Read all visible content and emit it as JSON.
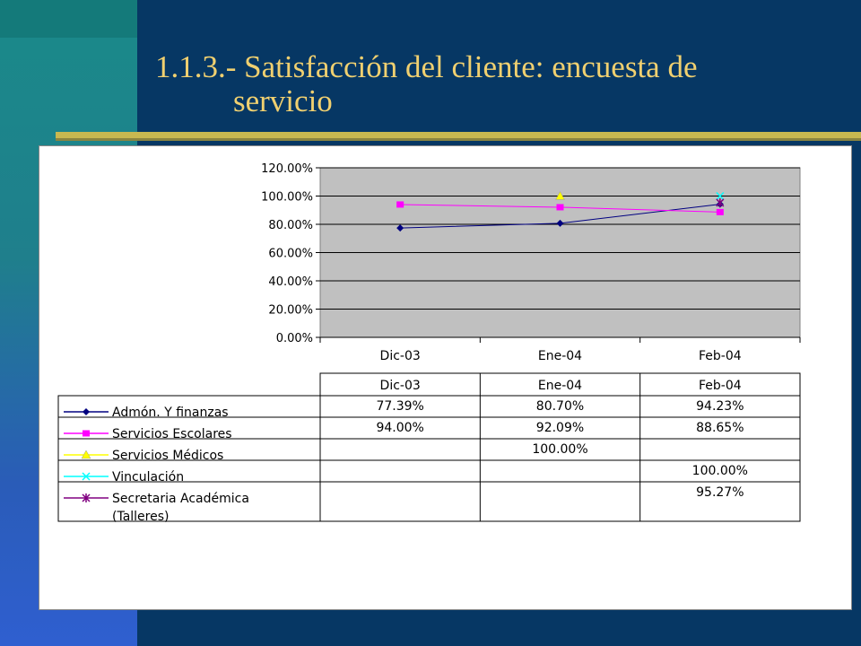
{
  "slide": {
    "title_line1": "1.1.3.- Satisfacción del cliente: encuesta de",
    "title_line2": "servicio"
  },
  "colors": {
    "plot_bg": "#c0c0c0",
    "title": "#f0d070"
  },
  "chart_data": {
    "type": "line",
    "categories": [
      "Dic-03",
      "Ene-04",
      "Feb-04"
    ],
    "ylim": [
      0,
      120
    ],
    "yticks": [
      "120.00%",
      "100.00%",
      "80.00%",
      "60.00%",
      "40.00%",
      "20.00%",
      "0.00%"
    ],
    "ytick_values": [
      120,
      100,
      80,
      60,
      40,
      20,
      0
    ],
    "grid": true,
    "series": [
      {
        "name": "Admón. Y finanzas",
        "color": "#000080",
        "marker": "diamond",
        "values": [
          77.39,
          80.7,
          94.23
        ],
        "labels": [
          "77.39%",
          "80.70%",
          "94.23%"
        ]
      },
      {
        "name": "Servicios Escolares",
        "color": "#ff00ff",
        "marker": "square",
        "values": [
          94.0,
          92.09,
          88.65
        ],
        "labels": [
          "94.00%",
          "92.09%",
          "88.65%"
        ]
      },
      {
        "name": "Servicios Médicos",
        "color": "#ffff00",
        "marker": "triangle",
        "values": [
          null,
          100.0,
          null
        ],
        "labels": [
          "",
          "100.00%",
          ""
        ]
      },
      {
        "name": "Vinculación",
        "color": "#00ffff",
        "marker": "x",
        "values": [
          null,
          null,
          100.0
        ],
        "labels": [
          "",
          "",
          "100.00%"
        ]
      },
      {
        "name": "Secretaria Académica",
        "name2": "(Talleres)",
        "color": "#800080",
        "marker": "star",
        "values": [
          null,
          null,
          95.27
        ],
        "labels": [
          "",
          "",
          "95.27%"
        ]
      }
    ]
  }
}
